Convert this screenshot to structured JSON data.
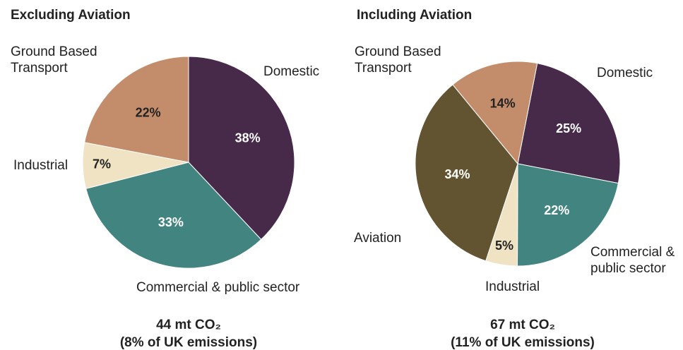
{
  "chart_data": [
    {
      "type": "pie",
      "title": "Excluding Aviation",
      "categories": [
        "Domestic",
        "Commercial & public sector",
        "Industrial",
        "Ground Based Transport"
      ],
      "values": [
        38,
        33,
        7,
        22
      ],
      "value_labels": [
        "38%",
        "33%",
        "7%",
        "22%"
      ],
      "colors": [
        "#47294a",
        "#428580",
        "#efe3c4",
        "#c38d6b"
      ],
      "caption": [
        "44 mt CO₂",
        "(8% of UK emissions)"
      ]
    },
    {
      "type": "pie",
      "title": "Including Aviation",
      "categories": [
        "Domestic",
        "Commercial & public sector",
        "Industrial",
        "Aviation",
        "Ground Based Transport"
      ],
      "values": [
        25,
        22,
        5,
        34,
        14
      ],
      "value_labels": [
        "25%",
        "22%",
        "5%",
        "34%",
        "14%"
      ],
      "colors": [
        "#47294a",
        "#428580",
        "#efe3c4",
        "#625430",
        "#c38d6b"
      ],
      "caption": [
        "67 mt CO₂",
        "(11% of UK emissions)"
      ]
    }
  ]
}
